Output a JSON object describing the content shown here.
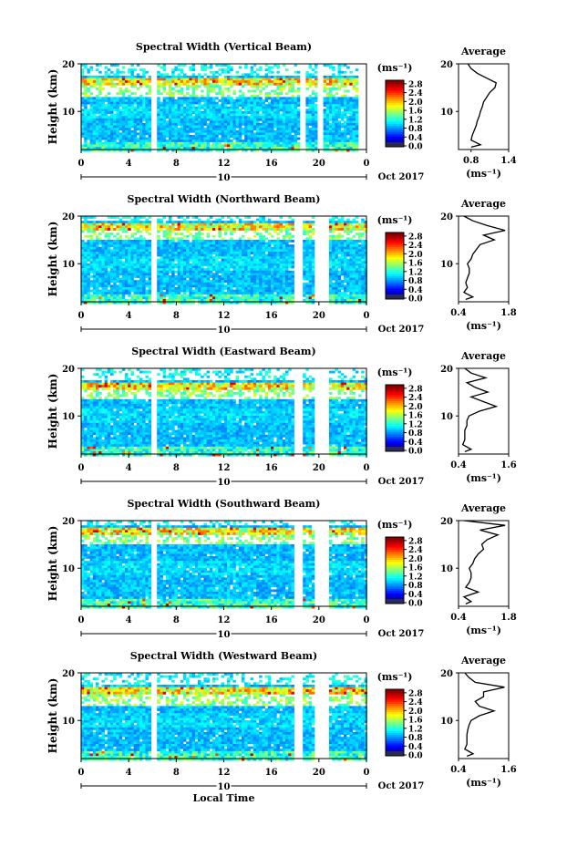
{
  "chart_data": [
    {
      "type": "heatmap",
      "title": "Spectral Width (Vertical Beam)",
      "ylabel": "Height (km)",
      "xticks": [
        "0",
        "4",
        "8",
        "12",
        "16",
        "20",
        "0"
      ],
      "yticks": [
        "20",
        "10"
      ],
      "xlim": [
        0,
        24
      ],
      "ylim": [
        2,
        20
      ],
      "date_marker": "10",
      "date_label": "Oct 2017",
      "colorbar": {
        "unit": "(ms⁻¹)",
        "ticks": [
          "2.8",
          "2.4",
          "2.0",
          "1.6",
          "1.2",
          "0.8",
          "0.4",
          "0.0"
        ],
        "min": 0.0,
        "max": 3.0
      },
      "data_gaps_hours": [
        [
          5.7,
          6.2
        ],
        [
          18.2,
          18.8
        ],
        [
          19.7,
          20.3
        ],
        [
          23.1,
          24.0
        ]
      ],
      "tropopause_band_km": [
        13.5,
        16.0
      ],
      "average_profile": {
        "title": "Average",
        "xlabel": "(ms⁻¹)",
        "xticks": [
          "0.8",
          "1.4"
        ],
        "xlim": [
          0.6,
          1.4
        ],
        "yticks": [
          "20",
          "10"
        ],
        "height_km": [
          2.5,
          3,
          4,
          5,
          6,
          7,
          8,
          9,
          10,
          11,
          12,
          13,
          14,
          15,
          16,
          17,
          18,
          19,
          20
        ],
        "values": [
          0.8,
          0.95,
          0.8,
          0.82,
          0.85,
          0.88,
          0.9,
          0.93,
          0.95,
          0.98,
          1.0,
          1.05,
          1.1,
          1.18,
          1.2,
          1.05,
          0.9,
          0.8,
          0.75
        ]
      }
    },
    {
      "type": "heatmap",
      "title": "Spectral Width (Northward Beam)",
      "ylabel": "Height (km)",
      "xticks": [
        "0",
        "4",
        "8",
        "12",
        "16",
        "20",
        "0"
      ],
      "yticks": [
        "20",
        "10"
      ],
      "xlim": [
        0,
        24
      ],
      "ylim": [
        2,
        20
      ],
      "date_marker": "10",
      "date_label": "Oct 2017",
      "colorbar": {
        "unit": "(ms⁻¹)",
        "ticks": [
          "2.8",
          "2.4",
          "2.0",
          "1.6",
          "1.2",
          "0.8",
          "0.4",
          "0.0"
        ],
        "min": 0.0,
        "max": 3.0
      },
      "data_gaps_hours": [
        [
          5.7,
          6.2
        ],
        [
          17.9,
          18.5
        ],
        [
          19.5,
          20.8
        ]
      ],
      "tropopause_band_km": [
        15.5,
        17.5
      ],
      "average_profile": {
        "title": "Average",
        "xlabel": "(ms⁻¹)",
        "xticks": [
          "0.4",
          "1.8"
        ],
        "xlim": [
          0.4,
          1.8
        ],
        "yticks": [
          "20",
          "10"
        ],
        "height_km": [
          2.5,
          3,
          4,
          5,
          6,
          7,
          8,
          9,
          10,
          11,
          12,
          13,
          14,
          15,
          16,
          17,
          18,
          19,
          20
        ],
        "values": [
          0.6,
          0.8,
          0.55,
          0.65,
          0.6,
          0.65,
          0.7,
          0.7,
          0.65,
          0.75,
          0.8,
          0.9,
          1.0,
          1.4,
          1.1,
          1.7,
          1.2,
          0.8,
          0.55
        ]
      }
    },
    {
      "type": "heatmap",
      "title": "Spectral Width (Eastward Beam)",
      "ylabel": "Height (km)",
      "xticks": [
        "0",
        "4",
        "8",
        "12",
        "16",
        "20",
        "0"
      ],
      "yticks": [
        "20",
        "10"
      ],
      "xlim": [
        0,
        24
      ],
      "ylim": [
        2,
        20
      ],
      "date_marker": "10",
      "date_label": "Oct 2017",
      "colorbar": {
        "unit": "(ms⁻¹)",
        "ticks": [
          "2.8",
          "2.4",
          "2.0",
          "1.6",
          "1.2",
          "0.8",
          "0.4",
          "0.0"
        ],
        "min": 0.0,
        "max": 3.0
      },
      "data_gaps_hours": [
        [
          5.7,
          6.2
        ],
        [
          17.9,
          18.5
        ],
        [
          19.5,
          20.8
        ]
      ],
      "tropopause_band_km": [
        14.0,
        16.0
      ],
      "average_profile": {
        "title": "Average",
        "xlabel": "(ms⁻¹)",
        "xticks": [
          "0.4",
          "1.6"
        ],
        "xlim": [
          0.4,
          1.6
        ],
        "yticks": [
          "20",
          "10"
        ],
        "height_km": [
          2.5,
          3,
          4,
          5,
          6,
          7,
          8,
          9,
          10,
          11,
          12,
          13,
          14,
          15,
          16,
          17,
          18,
          19,
          20
        ],
        "values": [
          0.55,
          0.7,
          0.5,
          0.55,
          0.55,
          0.55,
          0.6,
          0.6,
          0.65,
          0.9,
          1.3,
          1.0,
          0.7,
          1.1,
          0.8,
          0.6,
          1.05,
          0.7,
          0.55
        ]
      }
    },
    {
      "type": "heatmap",
      "title": "Spectral Width (Southward Beam)",
      "ylabel": "Height (km)",
      "xticks": [
        "0",
        "4",
        "8",
        "12",
        "16",
        "20",
        "0"
      ],
      "yticks": [
        "20",
        "10"
      ],
      "xlim": [
        0,
        24
      ],
      "ylim": [
        2,
        20
      ],
      "date_marker": "10",
      "date_label": "Oct 2017",
      "colorbar": {
        "unit": "(ms⁻¹)",
        "ticks": [
          "2.8",
          "2.4",
          "2.0",
          "1.6",
          "1.2",
          "0.8",
          "0.4",
          "0.0"
        ],
        "min": 0.0,
        "max": 3.0
      },
      "data_gaps_hours": [
        [
          5.7,
          6.2
        ],
        [
          17.9,
          18.5
        ],
        [
          19.5,
          20.8
        ]
      ],
      "tropopause_band_km": [
        15.5,
        17.5
      ],
      "average_profile": {
        "title": "Average",
        "xlabel": "(ms⁻¹)",
        "xticks": [
          "0.4",
          "1.8"
        ],
        "xlim": [
          0.4,
          1.8
        ],
        "yticks": [
          "20",
          "10"
        ],
        "height_km": [
          2.5,
          3,
          4,
          5,
          6,
          7,
          8,
          9,
          10,
          11,
          12,
          13,
          14,
          15,
          16,
          17,
          18,
          19,
          20
        ],
        "values": [
          0.6,
          0.75,
          0.55,
          0.95,
          0.6,
          0.7,
          0.75,
          0.75,
          0.7,
          0.8,
          0.85,
          0.95,
          1.1,
          1.05,
          1.2,
          1.5,
          1.0,
          1.7,
          0.55
        ]
      }
    },
    {
      "type": "heatmap",
      "title": "Spectral Width (Westward Beam)",
      "ylabel": "Height (km)",
      "xlabel": "Local Time",
      "xticks": [
        "0",
        "4",
        "8",
        "12",
        "16",
        "20",
        "0"
      ],
      "yticks": [
        "20",
        "10"
      ],
      "xlim": [
        0,
        24
      ],
      "ylim": [
        2,
        20
      ],
      "date_marker": "10",
      "date_label": "Oct 2017",
      "colorbar": {
        "unit": "(ms⁻¹)",
        "ticks": [
          "2.8",
          "2.4",
          "2.0",
          "1.6",
          "1.2",
          "0.8",
          "0.4",
          "0.0"
        ],
        "min": 0.0,
        "max": 3.0
      },
      "data_gaps_hours": [
        [
          5.7,
          6.2
        ],
        [
          17.9,
          18.5
        ],
        [
          19.5,
          20.8
        ]
      ],
      "tropopause_band_km": [
        13.5,
        16.0
      ],
      "average_profile": {
        "title": "Average",
        "xlabel": "(ms⁻¹)",
        "xticks": [
          "0.4",
          "1.6"
        ],
        "xlim": [
          0.4,
          1.6
        ],
        "yticks": [
          "20",
          "10"
        ],
        "height_km": [
          2.5,
          3,
          4,
          5,
          6,
          7,
          8,
          9,
          10,
          11,
          12,
          13,
          14,
          15,
          16,
          17,
          18,
          19,
          20
        ],
        "values": [
          0.6,
          0.75,
          0.55,
          0.6,
          0.6,
          0.6,
          0.62,
          0.65,
          0.7,
          0.9,
          1.25,
          0.9,
          0.8,
          1.0,
          1.0,
          1.5,
          0.8,
          0.65,
          0.55
        ]
      }
    }
  ]
}
